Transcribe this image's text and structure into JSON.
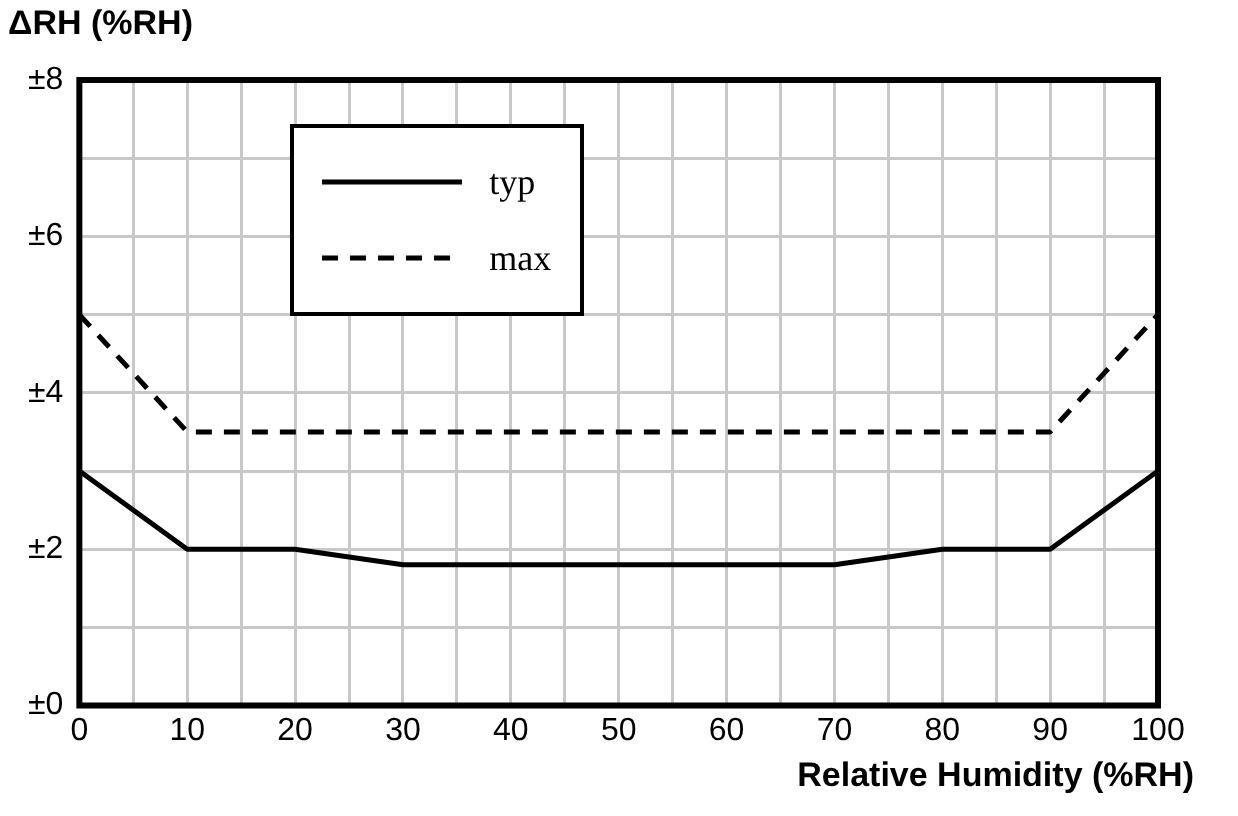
{
  "chart_data": {
    "type": "line",
    "ylabel": "ΔRH (%RH)",
    "xlabel": "Relative Humidity (%RH)",
    "x": [
      0,
      10,
      20,
      30,
      40,
      50,
      60,
      70,
      80,
      90,
      100
    ],
    "series": [
      {
        "name": "typ",
        "color": "#000000",
        "line_style": "solid",
        "values": [
          3,
          2,
          2,
          1.8,
          1.8,
          1.8,
          1.8,
          1.8,
          2,
          2,
          3
        ]
      },
      {
        "name": "max",
        "color": "#000000",
        "line_style": "dashed",
        "values": [
          5,
          3.5,
          3.5,
          3.5,
          3.5,
          3.5,
          3.5,
          3.5,
          3.5,
          3.5,
          5
        ]
      }
    ],
    "xlim": [
      0,
      100
    ],
    "xticks": [
      0,
      {
        "value": 5,
        "label": null
      },
      10,
      {
        "value": 15,
        "label": null
      },
      20,
      {
        "value": 25,
        "label": null
      },
      30,
      {
        "value": 35,
        "label": null
      },
      40,
      {
        "value": 45,
        "label": null
      },
      50,
      {
        "value": 55,
        "label": null
      },
      60,
      {
        "value": 65,
        "label": null
      },
      70,
      {
        "value": 75,
        "label": null
      },
      80,
      {
        "value": 85,
        "label": null
      },
      90,
      {
        "value": 95,
        "label": null
      },
      100
    ],
    "ylim": [
      0,
      8
    ],
    "yticks": [
      {
        "value": 0,
        "label": "±0"
      },
      {
        "value": 1,
        "label": null
      },
      {
        "value": 2,
        "label": "±2"
      },
      {
        "value": 3,
        "label": null
      },
      {
        "value": 4,
        "label": "±4"
      },
      {
        "value": 5,
        "label": null
      },
      {
        "value": 6,
        "label": "±6"
      },
      {
        "value": 7,
        "label": null
      },
      {
        "value": 8,
        "label": "±8"
      }
    ],
    "grid": true,
    "legend": "top left",
    "marker": "none"
  }
}
